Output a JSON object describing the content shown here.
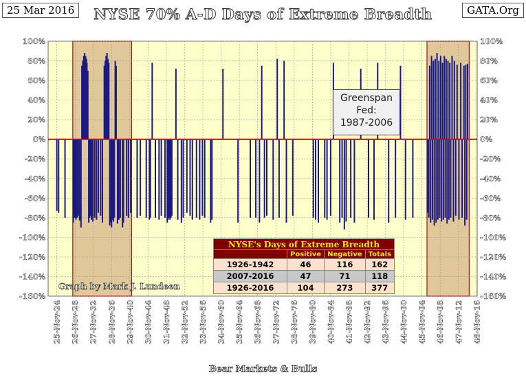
{
  "date_label": "25 Mar 2016",
  "site_label": "GATA.Org",
  "chart_data": {
    "type": "bar",
    "title": "NYSE 70% A-D Days of Extreme Breadth",
    "xlabel": "Bear Markets & Bulls",
    "ylabel": "",
    "ylim": [
      -160,
      100
    ],
    "y_ticks": [
      100,
      80,
      60,
      40,
      20,
      0,
      -20,
      -40,
      -60,
      -80,
      -100,
      -120,
      -140,
      -160
    ],
    "x_tick_labels": [
      "25-Nov-24",
      "26-Nov-28",
      "27-Nov-32",
      "28-Nov-36",
      "29-Nov-40",
      "30-Nov-44",
      "31-Nov-48",
      "32-Nov-52",
      "33-Nov-56",
      "34-Nov-60",
      "35-Nov-64",
      "36-Nov-68",
      "37-Nov-72",
      "38-Nov-76",
      "39-Nov-80",
      "40-Nov-84",
      "41-Nov-88",
      "42-Nov-92",
      "43-Nov-96",
      "44-Nov-00",
      "45-Nov-04",
      "46-Nov-08",
      "47-Nov-12",
      "48-Nov-16"
    ],
    "shaded_ranges": [
      [
        1929.4,
        1942.3
      ],
      [
        2007.0,
        2016.25
      ]
    ],
    "annotation": {
      "line1": "Greenspan",
      "line2": "Fed:",
      "line3": "1987-2006"
    },
    "credit": "Graph by Mark J. Lundeen",
    "bars": [
      [
        1925.9,
        -73
      ],
      [
        1926.3,
        -75
      ],
      [
        1927.7,
        -80
      ],
      [
        1929.5,
        -85
      ],
      [
        1929.8,
        -80
      ],
      [
        1930.1,
        -82
      ],
      [
        1930.4,
        -80
      ],
      [
        1930.6,
        -78
      ],
      [
        1930.9,
        -83
      ],
      [
        1931.2,
        -90
      ],
      [
        1931.4,
        75
      ],
      [
        1931.6,
        80
      ],
      [
        1931.8,
        85
      ],
      [
        1932.0,
        88
      ],
      [
        1932.2,
        85
      ],
      [
        1932.4,
        82
      ],
      [
        1932.5,
        78
      ],
      [
        1932.7,
        70
      ],
      [
        1932.9,
        -85
      ],
      [
        1933.1,
        -80
      ],
      [
        1933.3,
        -78
      ],
      [
        1933.5,
        -82
      ],
      [
        1933.8,
        -84
      ],
      [
        1934.2,
        -80
      ],
      [
        1934.6,
        -82
      ],
      [
        1935.0,
        -75
      ],
      [
        1935.5,
        -78
      ],
      [
        1935.9,
        -85
      ],
      [
        1936.3,
        75
      ],
      [
        1936.5,
        80
      ],
      [
        1936.7,
        85
      ],
      [
        1936.9,
        88
      ],
      [
        1937.1,
        82
      ],
      [
        1937.3,
        78
      ],
      [
        1937.5,
        -88
      ],
      [
        1937.7,
        -85
      ],
      [
        1937.9,
        -90
      ],
      [
        1938.1,
        -82
      ],
      [
        1938.3,
        -84
      ],
      [
        1938.5,
        -80
      ],
      [
        1938.7,
        80
      ],
      [
        1938.9,
        75
      ],
      [
        1939.2,
        -86
      ],
      [
        1939.5,
        -82
      ],
      [
        1939.8,
        -80
      ],
      [
        1940.3,
        -90
      ],
      [
        1940.5,
        -85
      ],
      [
        1941.2,
        -78
      ],
      [
        1941.6,
        -80
      ],
      [
        1942.1,
        -75
      ],
      [
        1943.5,
        -80
      ],
      [
        1944.2,
        -78
      ],
      [
        1945.5,
        -80
      ],
      [
        1946.2,
        -82
      ],
      [
        1946.4,
        -80
      ],
      [
        1946.8,
        78
      ],
      [
        1947.5,
        -80
      ],
      [
        1948.3,
        -82
      ],
      [
        1948.8,
        -78
      ],
      [
        1949.6,
        -80
      ],
      [
        1950.1,
        -85
      ],
      [
        1950.3,
        -82
      ],
      [
        1950.5,
        -80
      ],
      [
        1950.7,
        -82
      ],
      [
        1950.9,
        -80
      ],
      [
        1951.1,
        -78
      ],
      [
        1952.0,
        72
      ],
      [
        1952.4,
        -82
      ],
      [
        1953.2,
        -85
      ],
      [
        1953.6,
        -80
      ],
      [
        1954.4,
        -75
      ],
      [
        1955.1,
        -78
      ],
      [
        1955.6,
        -82
      ],
      [
        1956.5,
        -80
      ],
      [
        1957.2,
        -82
      ],
      [
        1957.8,
        -78
      ],
      [
        1958.3,
        -80
      ],
      [
        1959.6,
        -85
      ],
      [
        1959.9,
        -82
      ],
      [
        1962.3,
        72
      ],
      [
        1965.6,
        -85
      ],
      [
        1968.3,
        -80
      ],
      [
        1969.5,
        -80
      ],
      [
        1970.3,
        -85
      ],
      [
        1970.8,
        75
      ],
      [
        1971.4,
        -80
      ],
      [
        1971.9,
        -78
      ],
      [
        1973.3,
        -82
      ],
      [
        1974.2,
        82
      ],
      [
        1974.6,
        -80
      ],
      [
        1975.7,
        80
      ],
      [
        1976.2,
        -85
      ],
      [
        1977.6,
        -78
      ],
      [
        1982.1,
        -80
      ],
      [
        1982.6,
        -82
      ],
      [
        1983.2,
        -85
      ],
      [
        1984.6,
        -80
      ],
      [
        1985.1,
        -82
      ],
      [
        1985.9,
        -78
      ],
      [
        1986.5,
        78
      ],
      [
        1987.9,
        -85
      ],
      [
        1988.4,
        -80
      ],
      [
        1988.9,
        -92
      ],
      [
        1989.3,
        -84
      ],
      [
        1990.3,
        -80
      ],
      [
        1991.1,
        -85
      ],
      [
        1992.5,
        72
      ],
      [
        1994.2,
        -80
      ],
      [
        1995.4,
        -82
      ],
      [
        1996.2,
        78
      ],
      [
        1998.6,
        -85
      ],
      [
        2000.1,
        -80
      ],
      [
        2001.2,
        75
      ],
      [
        2002.3,
        -82
      ],
      [
        2003.9,
        -80
      ],
      [
        2007.1,
        -75
      ],
      [
        2007.4,
        -80
      ],
      [
        2007.6,
        75
      ],
      [
        2007.8,
        -85
      ],
      [
        2008.0,
        85
      ],
      [
        2008.2,
        -82
      ],
      [
        2008.4,
        80
      ],
      [
        2008.6,
        -88
      ],
      [
        2008.8,
        82
      ],
      [
        2009.0,
        -85
      ],
      [
        2009.2,
        88
      ],
      [
        2009.4,
        -82
      ],
      [
        2009.6,
        80
      ],
      [
        2009.8,
        -80
      ],
      [
        2010.0,
        85
      ],
      [
        2010.2,
        -84
      ],
      [
        2010.4,
        78
      ],
      [
        2010.6,
        -82
      ],
      [
        2010.8,
        85
      ],
      [
        2011.0,
        -80
      ],
      [
        2011.2,
        82
      ],
      [
        2011.4,
        -86
      ],
      [
        2011.6,
        80
      ],
      [
        2011.8,
        -82
      ],
      [
        2012.0,
        78
      ],
      [
        2012.2,
        -80
      ],
      [
        2012.5,
        85
      ],
      [
        2012.8,
        -84
      ],
      [
        2013.0,
        80
      ],
      [
        2013.3,
        -78
      ],
      [
        2013.6,
        76
      ],
      [
        2014.0,
        -82
      ],
      [
        2014.4,
        78
      ],
      [
        2014.7,
        -80
      ],
      [
        2015.1,
        75
      ],
      [
        2015.3,
        -88
      ],
      [
        2015.5,
        76
      ],
      [
        2015.7,
        -82
      ],
      [
        2015.9,
        77
      ]
    ]
  },
  "table": {
    "title": "NYSE's Days of Extreme Breadth",
    "headers": [
      "",
      "Positive",
      "Negative",
      "Totals"
    ],
    "rows": [
      [
        "1926-1942",
        "46",
        "116",
        "162"
      ],
      [
        "2007-2016",
        "47",
        "71",
        "118"
      ],
      [
        "1926-2016",
        "104",
        "273",
        "377"
      ]
    ]
  }
}
